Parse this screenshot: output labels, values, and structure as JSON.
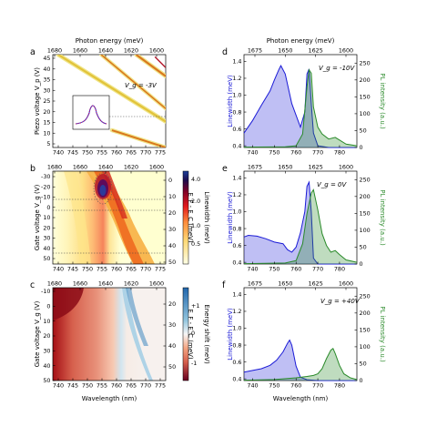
{
  "figure": {
    "panel_labels": {
      "a": "a",
      "b": "b",
      "c": "c",
      "d": "d",
      "e": "e",
      "f": "f"
    }
  },
  "chart_data": [
    {
      "id": "a",
      "type": "line",
      "top_axis_label": "Photon energy (meV)",
      "top_ticks": [
        "1680",
        "1660",
        "1640",
        "1620",
        "1600"
      ],
      "ylabel": "Piezo voltage V_p (V)",
      "yticks": [
        "45",
        "40",
        "35",
        "30",
        "25",
        "20",
        "15",
        "10",
        "5"
      ],
      "xticks": [
        "740",
        "745",
        "750",
        "755",
        "760",
        "765",
        "770",
        "775"
      ],
      "xlim": [
        736,
        778
      ],
      "ylim": [
        5,
        48
      ],
      "annotation": "V_g = -3V",
      "series": [
        {
          "x": [
            738,
            778
          ],
          "y": [
            48,
            17
          ],
          "width": 2.2
        },
        {
          "x": [
            754,
            778
          ],
          "y": [
            48,
            23
          ],
          "width": 1.6
        },
        {
          "x": [
            767,
            778
          ],
          "y": [
            48,
            38
          ],
          "width": 2.2
        },
        {
          "x": [
            758,
            778
          ],
          "y": [
            13,
            5
          ],
          "width": 2.0
        }
      ],
      "inset": "Lorentzian line-shape",
      "dashed_line_y": 20
    },
    {
      "id": "b",
      "type": "heatmap",
      "top_ticks": [
        "1680",
        "1660",
        "1640",
        "1620",
        "1600"
      ],
      "ylabel": "Gate voltage V_g (V)",
      "yticks": [
        "-30",
        "-20",
        "-10",
        "0",
        "10",
        "20",
        "30",
        "40",
        "50"
      ],
      "xticks": [
        "740",
        "745",
        "750",
        "755",
        "760",
        "765",
        "770",
        "775"
      ],
      "xlim": [
        736,
        778
      ],
      "ylim": [
        -35,
        50
      ],
      "right_label": "E_F - E_C (meV)",
      "right_ticks": [
        "0",
        "10",
        "20",
        "30",
        "40",
        "50"
      ],
      "colorbar_label": "Linewidth (meV)",
      "colorbar_ticks": [
        "4.0",
        "2.0",
        "1.0",
        "0.5"
      ],
      "colorscale": [
        "#ffffe5",
        "#fed976",
        "#fd8d3c",
        "#e31a1c",
        "#800026",
        "#1e0b4b",
        "#1b3f9a"
      ],
      "dashed_lines_y": [
        -10,
        0,
        40
      ]
    },
    {
      "id": "c",
      "type": "heatmap",
      "top_ticks": [
        "1680",
        "1660",
        "1640",
        "1620",
        "1600"
      ],
      "xlabel": "Wavelength (nm)",
      "ylabel": "Gate voltage V_g (V)",
      "yticks": [
        "-10",
        "0",
        "10",
        "20",
        "30",
        "40",
        "50"
      ],
      "xticks": [
        "740",
        "745",
        "750",
        "755",
        "760",
        "765",
        "770",
        "775"
      ],
      "xlim": [
        736,
        778
      ],
      "ylim": [
        -10,
        50
      ],
      "right_label": "E_F - E_C (meV)",
      "right_ticks": [
        "20",
        "30",
        "40",
        "50"
      ],
      "colorbar_label": "Energy shift (meV)",
      "colorbar_ticks": [
        "+1",
        "0",
        "-1"
      ],
      "colorscale": [
        "#67001f",
        "#d6604d",
        "#f4a582",
        "#fddbc7",
        "#f7f7f7",
        "#d1e5f0",
        "#92c5de",
        "#2166ac"
      ]
    },
    {
      "id": "d",
      "type": "area",
      "top_axis_label": "Photon energy (meV)",
      "top_ticks": [
        "1675",
        "1650",
        "1625",
        "1600"
      ],
      "ylabel": "Linewidth (meV)",
      "ylabel2": "PL intensity (a.u.)",
      "yticks": [
        "1.4",
        "1.2",
        "1.0",
        "0.8",
        "0.6",
        "0.4"
      ],
      "y2ticks": [
        "250",
        "200",
        "150",
        "100",
        "50",
        "0"
      ],
      "xticks": [
        "740",
        "750",
        "760",
        "770",
        "780"
      ],
      "xlim": [
        736,
        788
      ],
      "ylim": [
        0.38,
        1.48
      ],
      "y2lim": [
        0,
        275
      ],
      "annotation": "V_g = -10V",
      "series": [
        {
          "name": "Linewidth",
          "color": "#1a1ad6",
          "x": [
            736,
            740,
            744,
            748,
            750,
            752,
            753,
            755,
            758,
            762,
            764,
            765,
            766,
            767,
            768,
            770,
            775,
            780,
            785,
            788
          ],
          "y": [
            0.55,
            0.7,
            0.88,
            1.05,
            1.18,
            1.3,
            1.35,
            1.25,
            0.9,
            0.62,
            0.8,
            1.25,
            1.31,
            0.9,
            0.55,
            0.4,
            0.38,
            0.38,
            0.38,
            0.38
          ]
        },
        {
          "name": "PL intensity",
          "color": "#2a8a2a",
          "x": [
            736,
            755,
            760,
            763,
            765,
            766,
            767,
            768,
            770,
            772,
            775,
            778,
            780,
            783,
            788
          ],
          "y": [
            1,
            2,
            5,
            40,
            180,
            230,
            220,
            120,
            60,
            40,
            25,
            30,
            22,
            10,
            5
          ]
        }
      ]
    },
    {
      "id": "e",
      "type": "area",
      "top_ticks": [
        "1675",
        "1650",
        "1625",
        "1600"
      ],
      "ylabel": "Linewidth (meV)",
      "ylabel2": "PL intensity (a.u.)",
      "yticks": [
        "1.4",
        "1.2",
        "1.0",
        "0.8",
        "0.6",
        "0.4"
      ],
      "y2ticks": [
        "250",
        "200",
        "150",
        "100",
        "50",
        "0"
      ],
      "xticks": [
        "740",
        "750",
        "760",
        "770",
        "780"
      ],
      "xlim": [
        736,
        788
      ],
      "ylim": [
        0.38,
        1.48
      ],
      "y2lim": [
        0,
        275
      ],
      "annotation": "V_g = 0V",
      "series": [
        {
          "name": "Linewidth",
          "color": "#1a1ad6",
          "x": [
            736,
            738,
            742,
            746,
            750,
            754,
            756,
            758,
            760,
            762,
            764,
            765,
            766,
            767,
            768,
            770,
            775,
            780,
            788
          ],
          "y": [
            0.7,
            0.72,
            0.71,
            0.68,
            0.64,
            0.62,
            0.55,
            0.52,
            0.58,
            0.75,
            1.0,
            1.3,
            1.35,
            1.0,
            0.45,
            0.38,
            0.38,
            0.38,
            0.38
          ]
        },
        {
          "name": "PL intensity",
          "color": "#2a8a2a",
          "x": [
            736,
            755,
            760,
            763,
            765,
            767,
            768,
            770,
            772,
            774,
            776,
            778,
            780,
            783,
            788
          ],
          "y": [
            1,
            3,
            10,
            60,
            150,
            210,
            220,
            160,
            90,
            55,
            35,
            40,
            28,
            12,
            5
          ]
        }
      ]
    },
    {
      "id": "f",
      "type": "area",
      "top_ticks": [
        "1675",
        "1650",
        "1625",
        "1600"
      ],
      "xlabel": "Wavelength (nm)",
      "ylabel": "Linewidth (meV)",
      "ylabel2": "PL intensity (a.u.)",
      "yticks": [
        "1.4",
        "1.2",
        "1.0",
        "0.8",
        "0.6",
        "0.4"
      ],
      "y2ticks": [
        "250",
        "200",
        "150",
        "100",
        "50",
        "0"
      ],
      "xticks": [
        "740",
        "750",
        "760",
        "770",
        "780"
      ],
      "xlim": [
        736,
        788
      ],
      "ylim": [
        0.38,
        1.48
      ],
      "y2lim": [
        0,
        275
      ],
      "annotation": "V_g = +40V",
      "series": [
        {
          "name": "Linewidth",
          "color": "#1a1ad6",
          "x": [
            736,
            740,
            744,
            748,
            751,
            754,
            756,
            757,
            758,
            760,
            762,
            765,
            770,
            775,
            780,
            788
          ],
          "y": [
            0.48,
            0.5,
            0.52,
            0.56,
            0.62,
            0.72,
            0.82,
            0.86,
            0.8,
            0.55,
            0.42,
            0.39,
            0.38,
            0.38,
            0.38,
            0.38
          ]
        },
        {
          "name": "PL intensity",
          "color": "#2a8a2a",
          "x": [
            736,
            750,
            760,
            765,
            768,
            770,
            772,
            774,
            776,
            777,
            778,
            780,
            782,
            785,
            788
          ],
          "y": [
            1,
            3,
            8,
            12,
            15,
            20,
            35,
            65,
            90,
            95,
            80,
            45,
            20,
            8,
            3
          ]
        }
      ]
    }
  ]
}
